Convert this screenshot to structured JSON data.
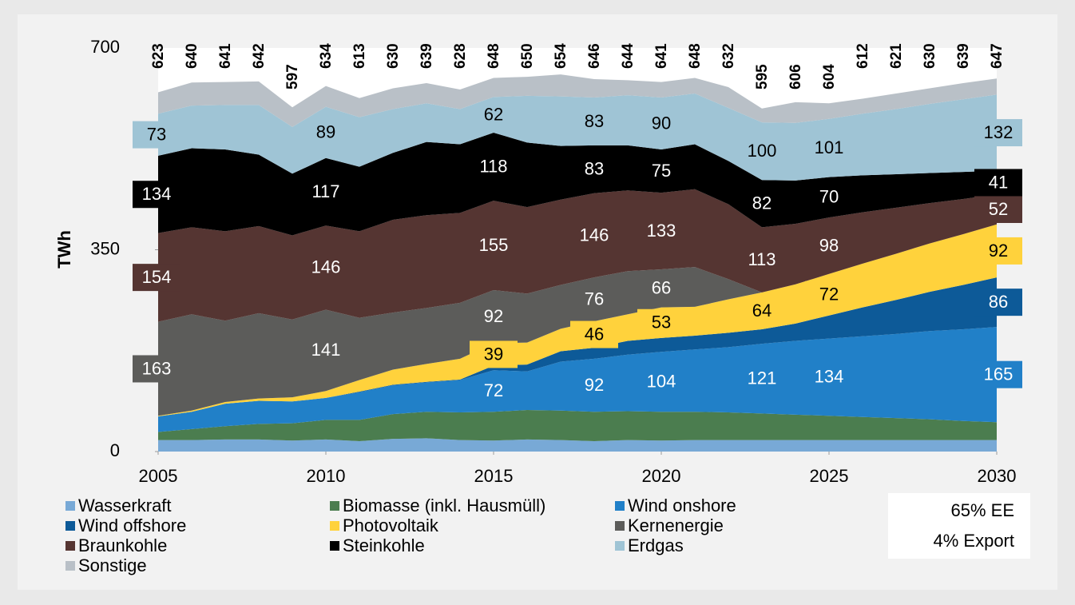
{
  "chart_data": {
    "type": "stacked_area",
    "ylabel": "TWh",
    "x": [
      2005,
      2006,
      2007,
      2008,
      2009,
      2010,
      2011,
      2012,
      2013,
      2014,
      2015,
      2016,
      2017,
      2018,
      2019,
      2020,
      2021,
      2022,
      2023,
      2024,
      2025,
      2026,
      2027,
      2028,
      2029,
      2030
    ],
    "xlim": [
      2005,
      2030
    ],
    "xticks": [
      2005,
      2010,
      2015,
      2020,
      2025,
      2030
    ],
    "ylim": [
      0,
      700
    ],
    "yticks": [
      0,
      350,
      700
    ],
    "totals": [
      623,
      640,
      641,
      642,
      597,
      634,
      613,
      630,
      639,
      628,
      648,
      650,
      654,
      646,
      644,
      641,
      648,
      632,
      595,
      606,
      604,
      612,
      621,
      630,
      639,
      647
    ],
    "series": [
      {
        "name": "Wasserkraft",
        "color": "#78a9d6",
        "values": [
          20,
          20,
          21,
          21,
          19,
          21,
          18,
          22,
          23,
          20,
          19,
          21,
          20,
          18,
          20,
          19,
          20,
          20,
          20,
          20,
          20,
          20,
          20,
          20,
          20,
          20
        ]
      },
      {
        "name": "Biomasse (inkl. Hausmüll)",
        "color": "#4b7d4f",
        "values": [
          14,
          19,
          23,
          27,
          30,
          34,
          37,
          43,
          46,
          48,
          50,
          51,
          51,
          51,
          50,
          50,
          49,
          48,
          46,
          44,
          42,
          40,
          38,
          36,
          33,
          31
        ]
      },
      {
        "name": "Wind onshore",
        "color": "#2180c8",
        "values": [
          27,
          30,
          39,
          40,
          38,
          38,
          48,
          50,
          51,
          56,
          72,
          67,
          85,
          92,
          98,
          104,
          108,
          113,
          121,
          128,
          134,
          140,
          146,
          153,
          159,
          165
        ]
      },
      {
        "name": "Wind offshore",
        "color": "#0d5a98",
        "values": [
          0,
          0,
          0,
          0,
          0,
          0,
          1,
          1,
          1,
          1,
          8,
          12,
          18,
          19,
          24,
          24,
          24,
          25,
          25,
          30,
          40,
          50,
          59,
          68,
          77,
          86
        ]
      },
      {
        "name": "Photovoltaik",
        "color": "#ffd23c",
        "values": [
          1,
          2,
          3,
          4,
          7,
          12,
          20,
          26,
          31,
          36,
          39,
          38,
          39,
          46,
          46,
          53,
          50,
          58,
          64,
          68,
          72,
          76,
          80,
          84,
          88,
          92
        ]
      },
      {
        "name": "Kernenergie",
        "color": "#5c5c5a",
        "values": [
          163,
          167,
          141,
          148,
          135,
          141,
          108,
          99,
          97,
          97,
          92,
          85,
          76,
          76,
          75,
          66,
          69,
          35,
          0,
          0,
          0,
          0,
          0,
          0,
          0,
          0
        ]
      },
      {
        "name": "Braunkohle",
        "color": "#553532",
        "values": [
          154,
          151,
          155,
          151,
          146,
          146,
          150,
          161,
          161,
          156,
          155,
          150,
          148,
          146,
          140,
          133,
          135,
          130,
          113,
          105,
          98,
          89,
          80,
          70,
          61,
          52
        ]
      },
      {
        "name": "Steinkohle",
        "color": "#000000",
        "values": [
          134,
          137,
          142,
          124,
          107,
          117,
          112,
          116,
          127,
          119,
          118,
          112,
          93,
          83,
          78,
          75,
          78,
          75,
          82,
          75,
          70,
          64,
          58,
          52,
          47,
          41
        ]
      },
      {
        "name": "Erdgas",
        "color": "#9fc4d5",
        "values": [
          73,
          74,
          77,
          86,
          81,
          89,
          86,
          76,
          67,
          61,
          62,
          81,
          86,
          83,
          87,
          90,
          88,
          92,
          100,
          100,
          101,
          107,
          113,
          120,
          126,
          132
        ]
      },
      {
        "name": "Sonstige",
        "color": "#b9c0c7",
        "values": [
          37,
          40,
          40,
          41,
          34,
          36,
          33,
          36,
          35,
          34,
          33,
          33,
          38,
          32,
          26,
          27,
          27,
          36,
          24,
          36,
          27,
          26,
          27,
          27,
          28,
          28
        ]
      }
    ],
    "annotations": [
      "65% EE",
      "4% Export"
    ]
  }
}
